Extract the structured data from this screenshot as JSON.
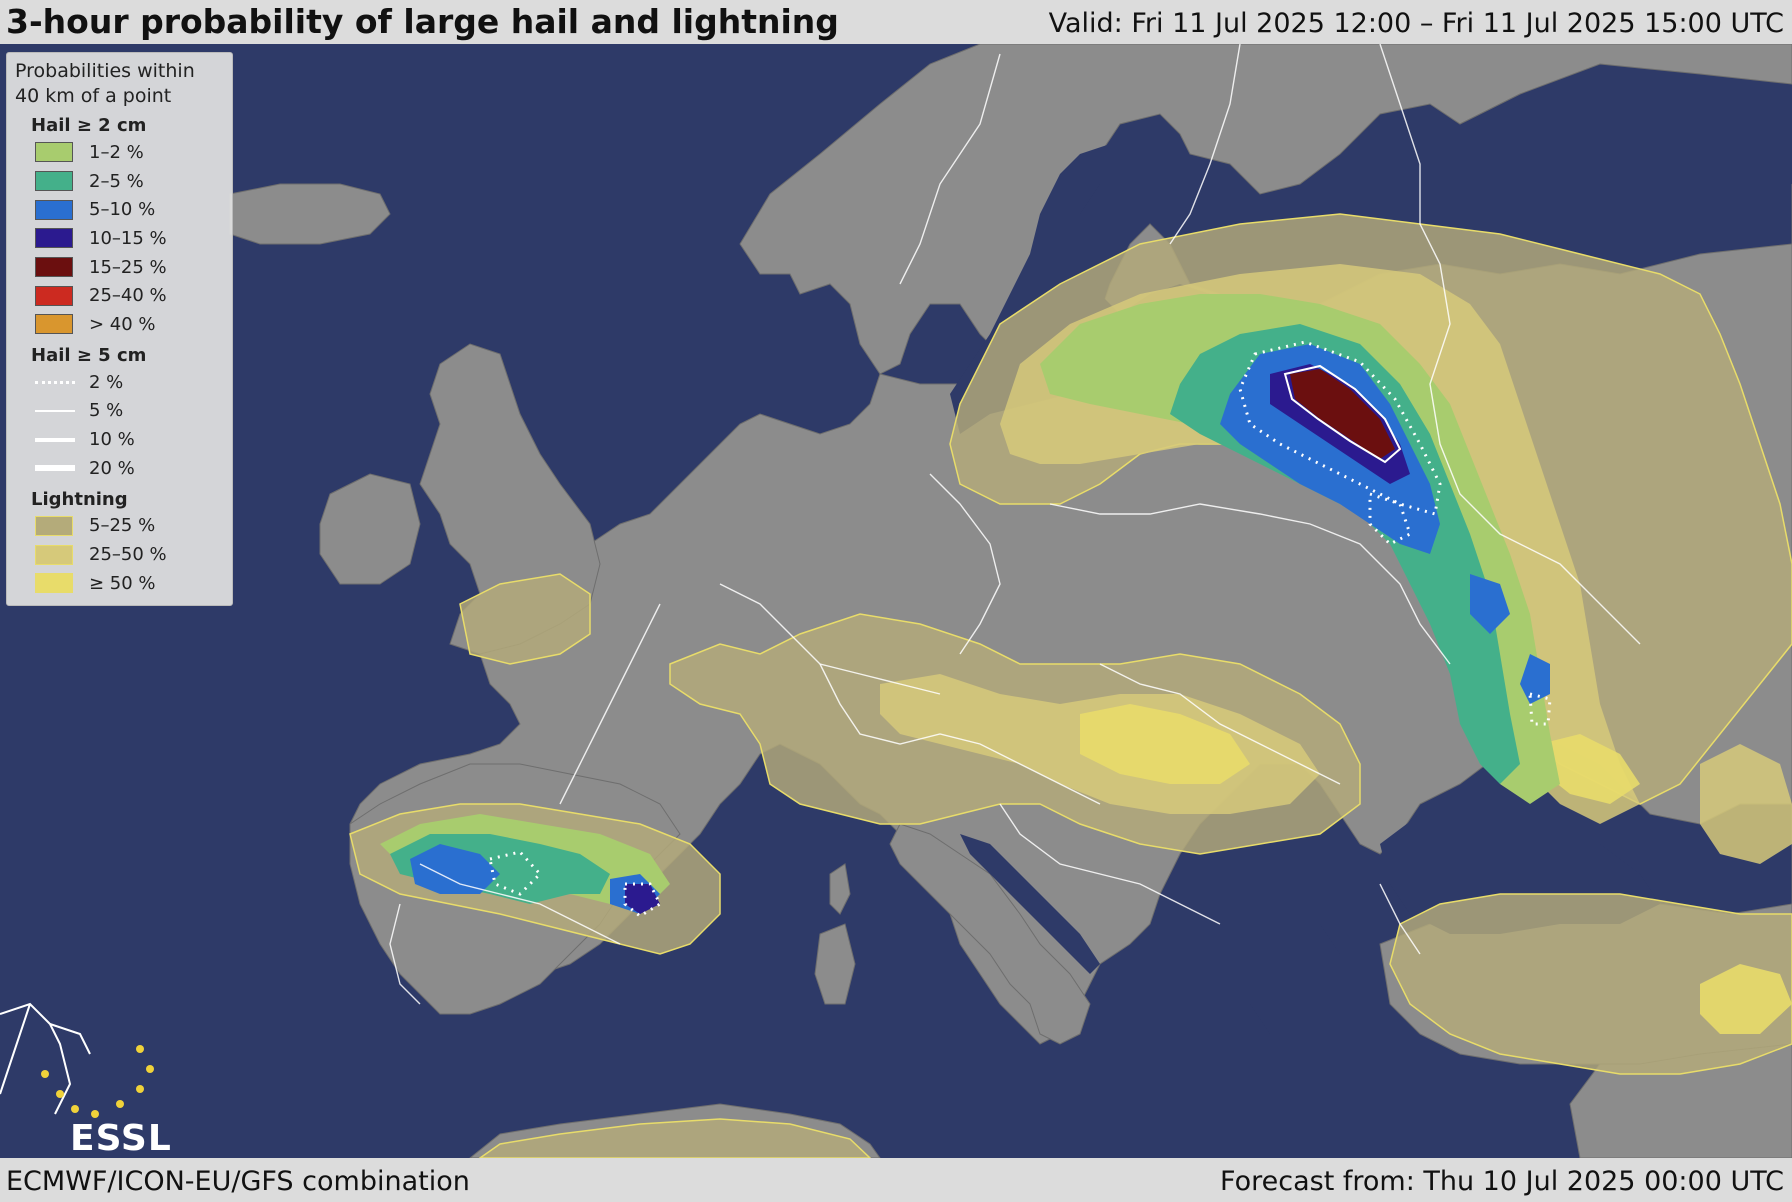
{
  "header": {
    "title": "3-hour probability of large hail and lightning",
    "valid": "Valid: Fri 11 Jul 2025 12:00 – Fri 11 Jul 2025 15:00 UTC"
  },
  "footer": {
    "source": "ECMWF/ICON-EU/GFS combination",
    "forecast": "Forecast from: Thu 10 Jul 2025 00:00 UTC"
  },
  "legend": {
    "header_line1": "Probabilities within",
    "header_line2": "40 km of a point",
    "hail2": {
      "title": "Hail ≥ 2 cm",
      "items": [
        {
          "label": "1–2 %",
          "color": "#a8cc6e"
        },
        {
          "label": "2–5 %",
          "color": "#44b08a"
        },
        {
          "label": "5–10 %",
          "color": "#2a6fd0"
        },
        {
          "label": "10–15 %",
          "color": "#2b1a8f"
        },
        {
          "label": "15–25 %",
          "color": "#6b0f0f"
        },
        {
          "label": "25–40 %",
          "color": "#cc2a20"
        },
        {
          "label": "> 40 %",
          "color": "#d9962e"
        }
      ]
    },
    "hail5": {
      "title": "Hail ≥ 5 cm",
      "items": [
        {
          "label": "2 %",
          "style": "dotted"
        },
        {
          "label": "5 %",
          "style": "thin"
        },
        {
          "label": "10 %",
          "style": "medium"
        },
        {
          "label": "20 %",
          "style": "thick"
        }
      ]
    },
    "lightning": {
      "title": "Lightning",
      "items": [
        {
          "label": "5–25 %",
          "color": "#b4ab7a"
        },
        {
          "label": "25–50 %",
          "color": "#d6c97a"
        },
        {
          "label": "≥ 50 %",
          "color": "#e8dc6a"
        }
      ]
    }
  },
  "logo": {
    "text": "ESSL"
  },
  "colors": {
    "sea": "#2e3a68",
    "land": "#8c8c8c",
    "border": "#ffffff"
  }
}
